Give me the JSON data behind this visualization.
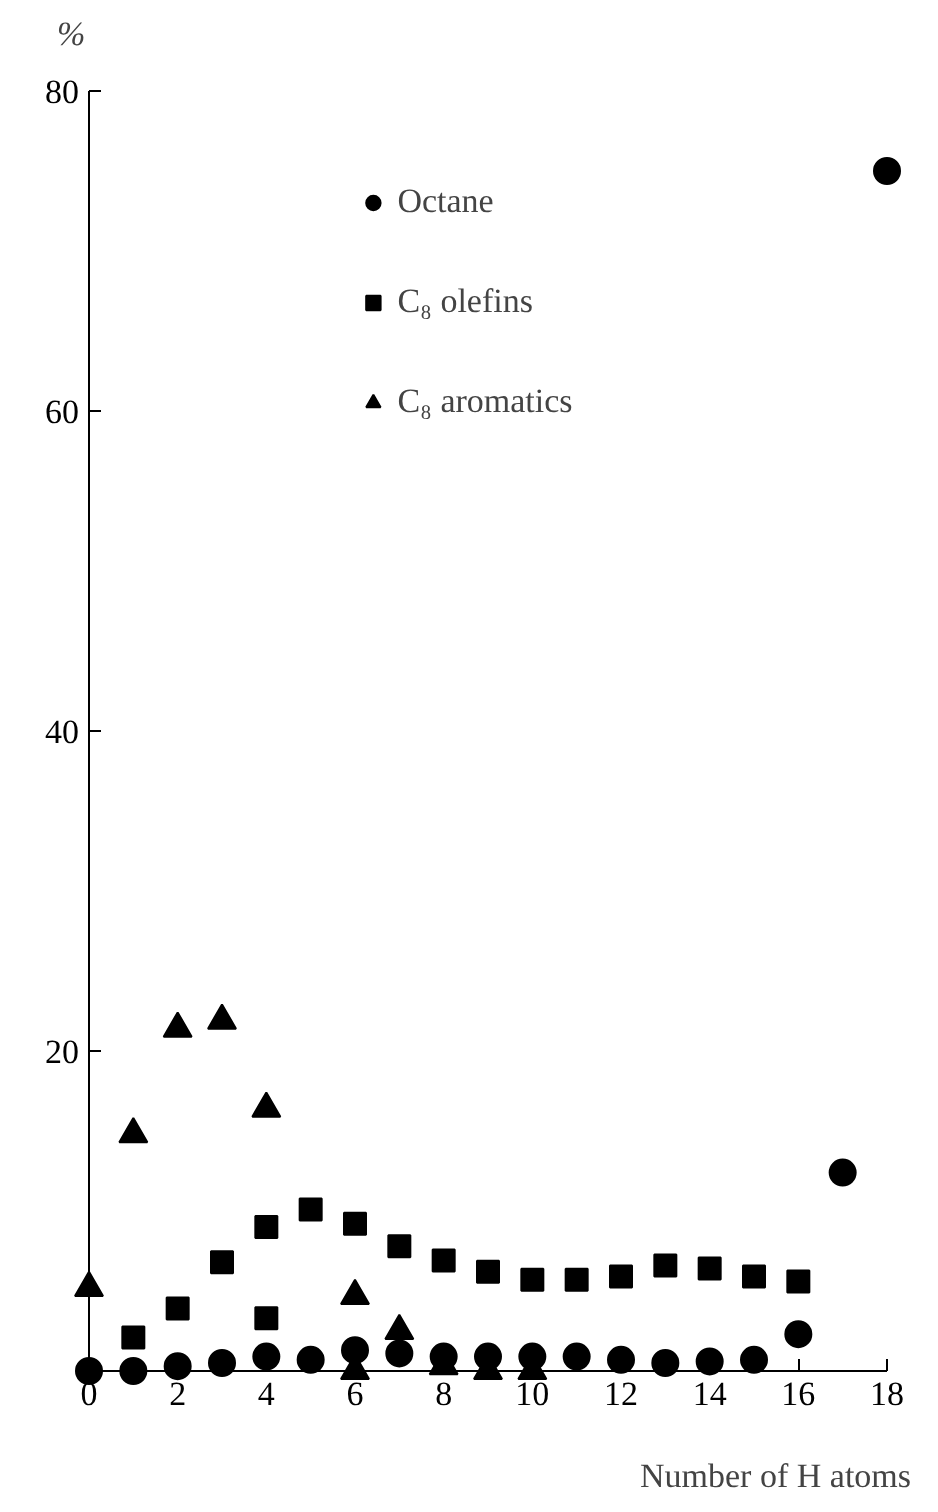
{
  "chart_data": {
    "type": "scatter",
    "xlabel": "Number of H atoms",
    "ylabel": "%",
    "xlim": [
      0,
      18
    ],
    "ylim": [
      0,
      80
    ],
    "xticks": [
      0,
      2,
      4,
      6,
      8,
      10,
      12,
      14,
      16,
      18
    ],
    "yticks": [
      20,
      40,
      60,
      80
    ],
    "grid": false,
    "legend": "top",
    "series": [
      {
        "name": "Octane",
        "color": "#000000",
        "marker": "circle",
        "x": [
          0,
          1,
          2,
          3,
          4,
          5,
          6,
          7,
          8,
          9,
          10,
          11,
          12,
          13,
          14,
          15,
          16,
          17,
          18
        ],
        "values": [
          0,
          0,
          0.3,
          0.5,
          0.9,
          0.7,
          1.3,
          1.1,
          0.9,
          0.9,
          0.9,
          0.9,
          0.7,
          0.5,
          0.6,
          0.7,
          2.3,
          12.4,
          75
        ]
      },
      {
        "name": "C₈ olefins",
        "color": "#000000",
        "marker": "square",
        "x": [
          1,
          2,
          3,
          4,
          4,
          5,
          6,
          7,
          8,
          9,
          10,
          11,
          12,
          13,
          14,
          15,
          16
        ],
        "values": [
          2.1,
          3.9,
          6.8,
          9.0,
          3.3,
          10.1,
          9.2,
          7.8,
          6.9,
          6.2,
          5.7,
          5.7,
          5.9,
          6.6,
          6.4,
          5.9,
          5.6
        ]
      },
      {
        "name": "C₈ aromatics",
        "color": "#000000",
        "marker": "triangle",
        "x": [
          0,
          1,
          2,
          3,
          4,
          6,
          6,
          7,
          8,
          9,
          10
        ],
        "values": [
          5.2,
          14.8,
          21.4,
          21.9,
          16.4,
          4.7,
          0,
          2.5,
          0.3,
          0,
          0
        ]
      }
    ]
  }
}
